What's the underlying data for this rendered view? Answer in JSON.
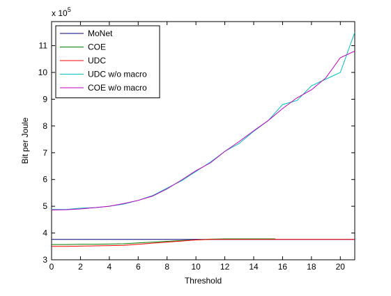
{
  "chart_data": {
    "type": "line",
    "xlabel": "Threshold",
    "ylabel": "Bit per Joule",
    "y_multiplier_label": "x 10",
    "y_multiplier_exponent": "5",
    "xlim": [
      0,
      21
    ],
    "ylim": [
      3,
      11.9
    ],
    "xticks": [
      0,
      2,
      4,
      6,
      8,
      10,
      12,
      14,
      16,
      18,
      20
    ],
    "yticks": [
      3,
      4,
      5,
      6,
      7,
      8,
      9,
      10,
      11
    ],
    "legend_position": "top-left",
    "series": [
      {
        "name": "MoNet",
        "color": "#000080",
        "x": [
          0,
          21
        ],
        "y": [
          3.76,
          3.76
        ]
      },
      {
        "name": "COE",
        "color": "#007f00",
        "x": [
          0,
          1,
          2,
          3,
          4,
          5,
          6,
          7,
          8,
          9,
          10,
          11,
          12,
          13,
          14,
          15,
          15.5
        ],
        "y": [
          3.57,
          3.57,
          3.58,
          3.58,
          3.59,
          3.6,
          3.63,
          3.66,
          3.69,
          3.72,
          3.74,
          3.77,
          3.78,
          3.78,
          3.78,
          3.78,
          3.78
        ]
      },
      {
        "name": "UDC",
        "color": "#ff0000",
        "x": [
          0,
          1,
          2,
          3,
          4,
          5,
          6,
          7,
          8,
          9,
          10,
          11,
          12,
          13,
          14,
          15,
          16,
          17,
          18,
          19,
          20,
          21
        ],
        "y": [
          3.5,
          3.5,
          3.51,
          3.52,
          3.53,
          3.54,
          3.58,
          3.62,
          3.66,
          3.7,
          3.74,
          3.76,
          3.76,
          3.76,
          3.76,
          3.76,
          3.76,
          3.76,
          3.76,
          3.76,
          3.76,
          3.76
        ]
      },
      {
        "name": "UDC w/o macro",
        "color": "#00bfbf",
        "x": [
          0,
          1,
          2,
          3,
          4,
          5,
          6,
          7,
          8,
          9,
          10,
          11,
          12,
          13,
          14,
          15,
          16,
          17,
          18,
          19,
          20,
          21
        ],
        "y": [
          4.88,
          4.88,
          4.93,
          4.95,
          5.0,
          5.08,
          5.22,
          5.4,
          5.68,
          5.95,
          6.3,
          6.65,
          7.05,
          7.35,
          7.8,
          8.2,
          8.8,
          8.95,
          9.5,
          9.75,
          10.0,
          11.5
        ]
      },
      {
        "name": "COE w/o macro",
        "color": "#bf00bf",
        "x": [
          0,
          1,
          2,
          3,
          4,
          5,
          6,
          7,
          8,
          9,
          10,
          11,
          12,
          13,
          14,
          15,
          16,
          17,
          18,
          19,
          20,
          21
        ],
        "y": [
          4.86,
          4.87,
          4.9,
          4.95,
          5.0,
          5.1,
          5.22,
          5.38,
          5.65,
          5.98,
          6.33,
          6.62,
          7.05,
          7.42,
          7.82,
          8.2,
          8.65,
          9.05,
          9.35,
          9.8,
          10.55,
          10.8
        ]
      }
    ]
  }
}
